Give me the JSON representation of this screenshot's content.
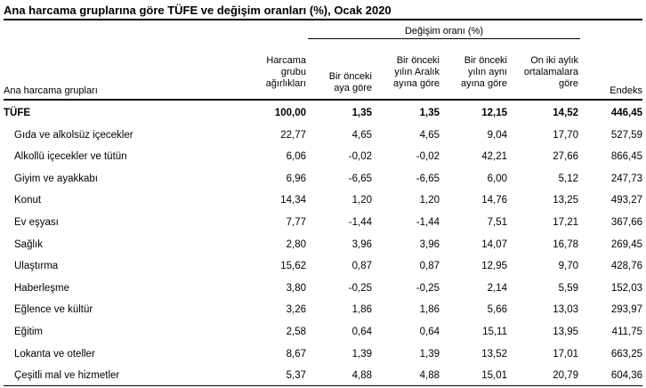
{
  "title": "Ana harcama gruplarına göre TÜFE ve değişim oranları (%), Ocak 2020",
  "group_header": "Değişim oranı (%)",
  "columns": {
    "name": "Ana harcama grupları",
    "weight": [
      "Harcama",
      "grubu",
      "ağırlıkları"
    ],
    "monthly": [
      "Bir önceki",
      "aya göre"
    ],
    "december": [
      "Bir önceki",
      "yılın Aralık",
      "ayına göre"
    ],
    "annual": [
      "Bir önceki",
      "yılın aynı",
      "ayına göre"
    ],
    "avg12": [
      "On iki aylık",
      "ortalamalara",
      "göre"
    ],
    "index": "Endeks"
  },
  "rows": [
    {
      "name": "TÜFE",
      "weight": "100,00",
      "monthly": "1,35",
      "december": "1,35",
      "annual": "12,15",
      "avg12": "14,52",
      "index": "446,45"
    },
    {
      "name": "Gıda ve alkolsüz içecekler",
      "weight": "22,77",
      "monthly": "4,65",
      "december": "4,65",
      "annual": "9,04",
      "avg12": "17,70",
      "index": "527,59"
    },
    {
      "name": "Alkollü içecekler ve tütün",
      "weight": "6,06",
      "monthly": "-0,02",
      "december": "-0,02",
      "annual": "42,21",
      "avg12": "27,66",
      "index": "866,45"
    },
    {
      "name": "Giyim ve ayakkabı",
      "weight": "6,96",
      "monthly": "-6,65",
      "december": "-6,65",
      "annual": "6,00",
      "avg12": "5,12",
      "index": "247,73"
    },
    {
      "name": "Konut",
      "weight": "14,34",
      "monthly": "1,20",
      "december": "1,20",
      "annual": "14,76",
      "avg12": "13,25",
      "index": "493,27"
    },
    {
      "name": "Ev eşyası",
      "weight": "7,77",
      "monthly": "-1,44",
      "december": "-1,44",
      "annual": "7,51",
      "avg12": "17,21",
      "index": "367,66"
    },
    {
      "name": "Sağlık",
      "weight": "2,80",
      "monthly": "3,96",
      "december": "3,96",
      "annual": "14,07",
      "avg12": "16,78",
      "index": "269,45"
    },
    {
      "name": "Ulaştırma",
      "weight": "15,62",
      "monthly": "0,87",
      "december": "0,87",
      "annual": "12,95",
      "avg12": "9,70",
      "index": "428,76"
    },
    {
      "name": "Haberleşme",
      "weight": "3,80",
      "monthly": "-0,25",
      "december": "-0,25",
      "annual": "2,14",
      "avg12": "5,59",
      "index": "152,03"
    },
    {
      "name": "Eğlence ve kültür",
      "weight": "3,26",
      "monthly": "1,86",
      "december": "1,86",
      "annual": "5,66",
      "avg12": "13,03",
      "index": "293,97"
    },
    {
      "name": "Eğitim",
      "weight": "2,58",
      "monthly": "0,64",
      "december": "0,64",
      "annual": "15,11",
      "avg12": "13,95",
      "index": "411,75"
    },
    {
      "name": "Lokanta ve oteller",
      "weight": "8,67",
      "monthly": "1,39",
      "december": "1,39",
      "annual": "13,52",
      "avg12": "17,01",
      "index": "663,25"
    },
    {
      "name": "Çeşitli mal ve hizmetler",
      "weight": "5,37",
      "monthly": "4,88",
      "december": "4,88",
      "annual": "15,01",
      "avg12": "20,79",
      "index": "604,36"
    }
  ]
}
